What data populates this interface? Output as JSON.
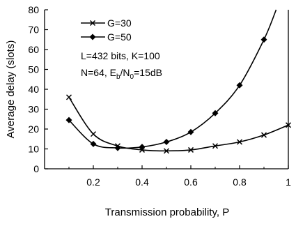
{
  "chart_data": {
    "type": "line",
    "xlabel": "Transmission probability, P",
    "ylabel": "Average delay (slots)",
    "xlim": [
      0,
      1
    ],
    "ylim": [
      0,
      80
    ],
    "xticks": [
      "0.2",
      "0.4",
      "0.6",
      "0.8",
      "1"
    ],
    "yticks": [
      "0",
      "10",
      "20",
      "30",
      "40",
      "50",
      "60",
      "70",
      "80"
    ],
    "grid": false,
    "legend_position": "top-left",
    "series": [
      {
        "name": "G=30",
        "marker": "x",
        "x": [
          0.1,
          0.2,
          0.3,
          0.4,
          0.5,
          0.6,
          0.7,
          0.8,
          0.9,
          1.0
        ],
        "y": [
          36,
          17.5,
          11.5,
          9.5,
          9,
          9.5,
          11.5,
          13.5,
          17,
          22
        ]
      },
      {
        "name": "G=50",
        "marker": "diamond",
        "x": [
          0.1,
          0.2,
          0.3,
          0.4,
          0.5,
          0.6,
          0.7,
          0.8,
          0.9,
          0.95
        ],
        "y": [
          24.5,
          12.5,
          10.5,
          11,
          13.5,
          18.5,
          28,
          42,
          65,
          80
        ]
      }
    ],
    "annotations": [
      {
        "text": "L=432 bits, K=100"
      },
      {
        "pre": "N=64, E",
        "sub1": "b",
        "mid": "/N",
        "sub2": "0",
        "post": "=15dB"
      }
    ]
  }
}
